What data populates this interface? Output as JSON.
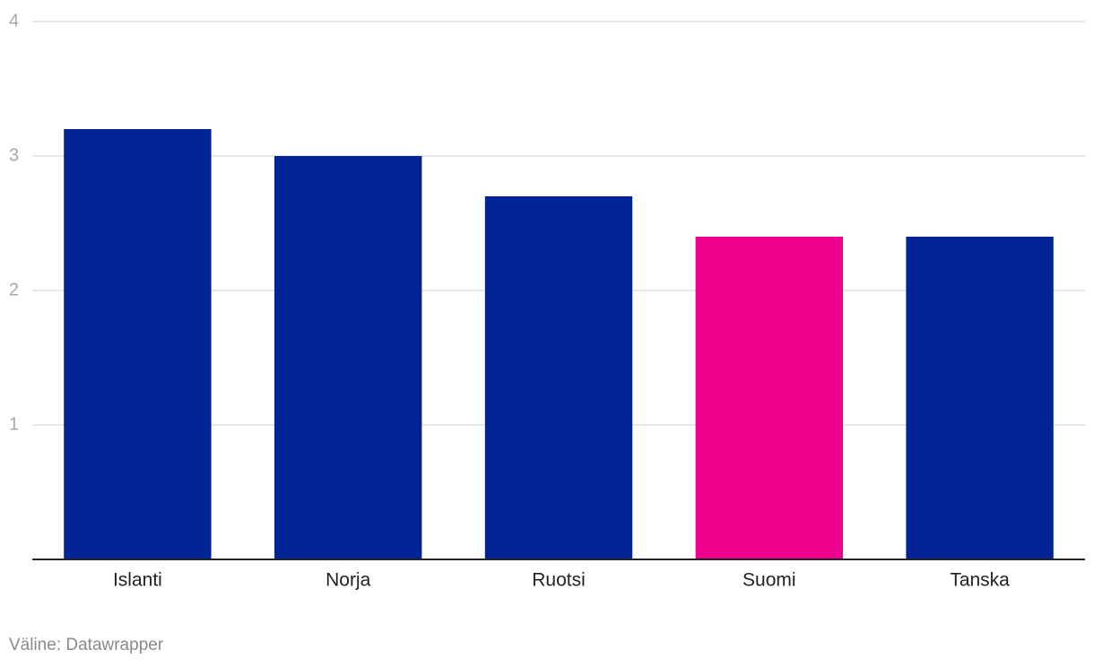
{
  "chart_data": {
    "type": "bar",
    "categories": [
      "Islanti",
      "Norja",
      "Ruotsi",
      "Suomi",
      "Tanska"
    ],
    "values": [
      3.2,
      3.0,
      2.7,
      2.4,
      2.4
    ],
    "colors": [
      "#002395",
      "#002395",
      "#002395",
      "#ec008c",
      "#002395"
    ],
    "ylim": [
      0,
      4
    ],
    "yticks": [
      1,
      2,
      3,
      4
    ],
    "grid": true,
    "source": "Väline: Datawrapper"
  }
}
